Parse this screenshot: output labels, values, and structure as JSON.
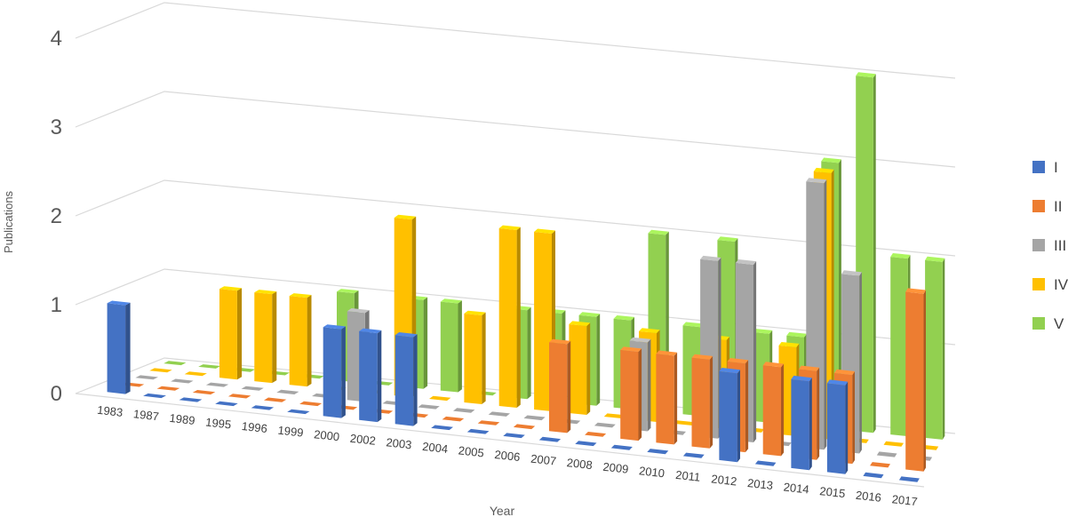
{
  "chart_data": {
    "type": "bar",
    "subtype": "3d-column",
    "title": "",
    "xlabel": "Year",
    "ylabel": "Publications",
    "ylim": [
      0,
      4
    ],
    "yticks": [
      "0",
      "1",
      "2",
      "3",
      "4"
    ],
    "grid": true,
    "legend_position": "right",
    "categories": [
      "1983",
      "1987",
      "1989",
      "1995",
      "1996",
      "1999",
      "2000",
      "2002",
      "2003",
      "2004",
      "2005",
      "2006",
      "2007",
      "2008",
      "2009",
      "2010",
      "2011",
      "2012",
      "2013",
      "2014",
      "2015",
      "2016",
      "2017"
    ],
    "series": [
      {
        "name": "I",
        "color": "#4472C4",
        "values": [
          1,
          0,
          0,
          0,
          0,
          0,
          1,
          1,
          1,
          0,
          0,
          0,
          0,
          0,
          0,
          0,
          0,
          1,
          0,
          1,
          1,
          0,
          0
        ]
      },
      {
        "name": "II",
        "color": "#ED7D31",
        "values": [
          0,
          0,
          0,
          0,
          0,
          0,
          0,
          0,
          0,
          0,
          0,
          0,
          1,
          0,
          1,
          1,
          1,
          1,
          1,
          1,
          1,
          0,
          2
        ]
      },
      {
        "name": "III",
        "color": "#A5A5A5",
        "values": [
          0,
          0,
          0,
          0,
          0,
          0,
          1,
          0,
          0,
          0,
          0,
          0,
          0,
          0,
          1,
          0,
          2,
          2,
          0,
          3,
          2,
          0,
          0
        ]
      },
      {
        "name": "IV",
        "color": "#FFC000",
        "values": [
          0,
          0,
          1,
          1,
          1,
          0,
          0,
          2,
          0,
          1,
          2,
          2,
          1,
          0,
          1,
          0,
          1,
          0,
          1,
          3,
          0,
          0,
          0
        ]
      },
      {
        "name": "V",
        "color": "#92D050",
        "values": [
          0,
          0,
          0,
          0,
          0,
          1,
          0,
          1,
          1,
          0,
          1,
          1,
          1,
          1,
          2,
          1,
          2,
          1,
          1,
          3,
          4,
          2,
          2
        ]
      }
    ]
  }
}
